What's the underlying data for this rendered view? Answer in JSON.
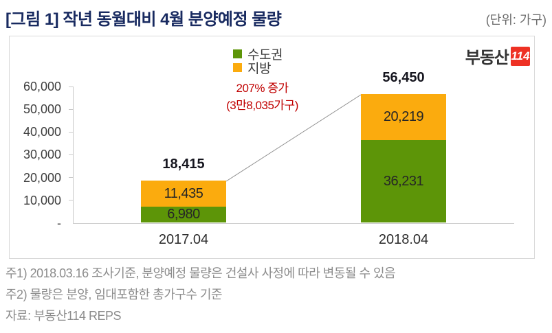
{
  "header": {
    "title": "[그림 1] 작년 동월대비 4월 분양예정 물량",
    "unit_label": "(단위: 가구)"
  },
  "logo": {
    "text": "부동산",
    "badge": "114",
    "badge_color": "#ee3124"
  },
  "annotation": {
    "line1": "207% 증가",
    "line2": "(3만8,035가구)",
    "color": "#c00000"
  },
  "chart_data": {
    "type": "bar",
    "stacked": true,
    "title": "[그림 1] 작년 동월대비 4월 분양예정 물량",
    "unit": "가구",
    "categories": [
      "2017.04",
      "2018.04"
    ],
    "series": [
      {
        "name": "수도권",
        "color": "#5d9508",
        "values": [
          6980,
          36231
        ],
        "labels": [
          "6,980",
          "36,231"
        ]
      },
      {
        "name": "지방",
        "color": "#fbab0e",
        "values": [
          11435,
          20219
        ],
        "labels": [
          "11,435",
          "20,219"
        ]
      }
    ],
    "totals": [
      18415,
      56450
    ],
    "total_labels": [
      "18,415",
      "56,450"
    ],
    "ylim": [
      0,
      60000
    ],
    "y_ticks": [
      60000,
      50000,
      40000,
      30000,
      20000,
      10000,
      0
    ],
    "y_tick_labels": [
      "60,000",
      "50,000",
      "40,000",
      "30,000",
      "20,000",
      "10,000",
      "-"
    ],
    "grid": false,
    "legend_position": "top-center",
    "annotation": "207% 증가 (3만8,035가구)"
  },
  "footnotes": [
    "주1) 2018.03.16 조사기준, 분양예정 물량은 건설사 사정에 따라 변동될 수 있음",
    "주2) 물량은 분양, 임대포함한 총가구수 기준",
    "자료: 부동산114 REPS"
  ]
}
